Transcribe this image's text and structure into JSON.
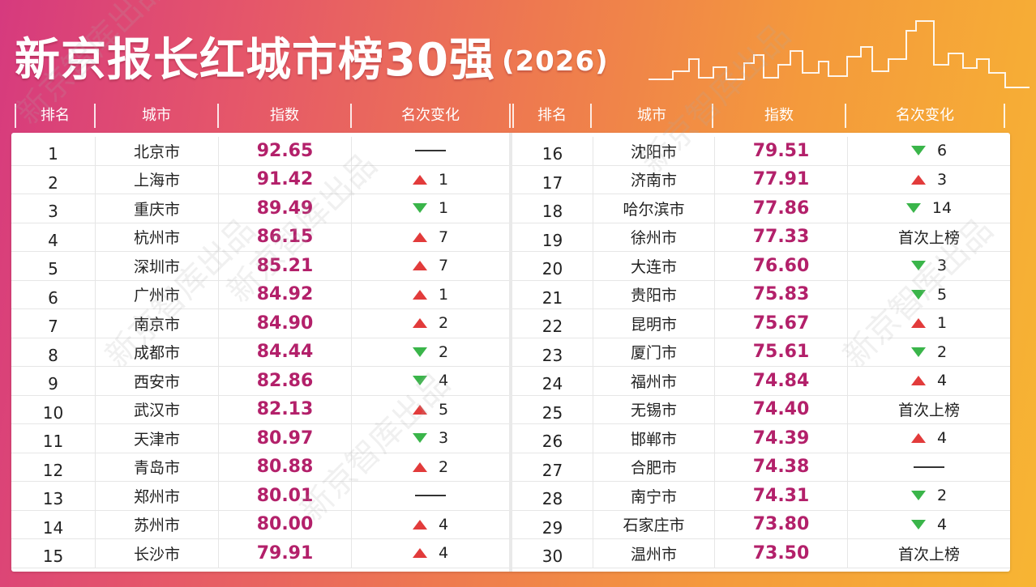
{
  "title": {
    "main": "新京报长红城市榜30强",
    "year": "(2026)"
  },
  "headers": {
    "left": [
      "排名",
      "城市",
      "指数",
      "名次变化"
    ],
    "right": [
      "排名",
      "城市",
      "指数",
      "名次变化"
    ]
  },
  "watermark": "新京智库出品",
  "colors": {
    "value": "#b3206a",
    "up": "#e23b3b",
    "down": "#3ab54a"
  },
  "rows": [
    {
      "rank": "1",
      "city": "北京市",
      "index": "92.65",
      "dir": "same",
      "change": ""
    },
    {
      "rank": "2",
      "city": "上海市",
      "index": "91.42",
      "dir": "up",
      "change": "1"
    },
    {
      "rank": "3",
      "city": "重庆市",
      "index": "89.49",
      "dir": "down",
      "change": "1"
    },
    {
      "rank": "4",
      "city": "杭州市",
      "index": "86.15",
      "dir": "up",
      "change": "7"
    },
    {
      "rank": "5",
      "city": "深圳市",
      "index": "85.21",
      "dir": "up",
      "change": "7"
    },
    {
      "rank": "6",
      "city": "广州市",
      "index": "84.92",
      "dir": "up",
      "change": "1"
    },
    {
      "rank": "7",
      "city": "南京市",
      "index": "84.90",
      "dir": "up",
      "change": "2"
    },
    {
      "rank": "8",
      "city": "成都市",
      "index": "84.44",
      "dir": "down",
      "change": "2"
    },
    {
      "rank": "9",
      "city": "西安市",
      "index": "82.86",
      "dir": "down",
      "change": "4"
    },
    {
      "rank": "10",
      "city": "武汉市",
      "index": "82.13",
      "dir": "up",
      "change": "5"
    },
    {
      "rank": "11",
      "city": "天津市",
      "index": "80.97",
      "dir": "down",
      "change": "3"
    },
    {
      "rank": "12",
      "city": "青岛市",
      "index": "80.88",
      "dir": "up",
      "change": "2"
    },
    {
      "rank": "13",
      "city": "郑州市",
      "index": "80.01",
      "dir": "same",
      "change": ""
    },
    {
      "rank": "14",
      "city": "苏州市",
      "index": "80.00",
      "dir": "up",
      "change": "4"
    },
    {
      "rank": "15",
      "city": "长沙市",
      "index": "79.91",
      "dir": "up",
      "change": "4"
    },
    {
      "rank": "16",
      "city": "沈阳市",
      "index": "79.51",
      "dir": "down",
      "change": "6"
    },
    {
      "rank": "17",
      "city": "济南市",
      "index": "77.91",
      "dir": "up",
      "change": "3"
    },
    {
      "rank": "18",
      "city": "哈尔滨市",
      "index": "77.86",
      "dir": "down",
      "change": "14"
    },
    {
      "rank": "19",
      "city": "徐州市",
      "index": "77.33",
      "dir": "new",
      "change": "首次上榜"
    },
    {
      "rank": "20",
      "city": "大连市",
      "index": "76.60",
      "dir": "down",
      "change": "3"
    },
    {
      "rank": "21",
      "city": "贵阳市",
      "index": "75.83",
      "dir": "down",
      "change": "5"
    },
    {
      "rank": "22",
      "city": "昆明市",
      "index": "75.67",
      "dir": "up",
      "change": "1"
    },
    {
      "rank": "23",
      "city": "厦门市",
      "index": "75.61",
      "dir": "down",
      "change": "2"
    },
    {
      "rank": "24",
      "city": "福州市",
      "index": "74.84",
      "dir": "up",
      "change": "4"
    },
    {
      "rank": "25",
      "city": "无锡市",
      "index": "74.40",
      "dir": "new",
      "change": "首次上榜"
    },
    {
      "rank": "26",
      "city": "邯郸市",
      "index": "74.39",
      "dir": "up",
      "change": "4"
    },
    {
      "rank": "27",
      "city": "合肥市",
      "index": "74.38",
      "dir": "same",
      "change": ""
    },
    {
      "rank": "28",
      "city": "南宁市",
      "index": "74.31",
      "dir": "down",
      "change": "2"
    },
    {
      "rank": "29",
      "city": "石家庄市",
      "index": "73.80",
      "dir": "down",
      "change": "4"
    },
    {
      "rank": "30",
      "city": "温州市",
      "index": "73.50",
      "dir": "new",
      "change": "首次上榜"
    }
  ]
}
